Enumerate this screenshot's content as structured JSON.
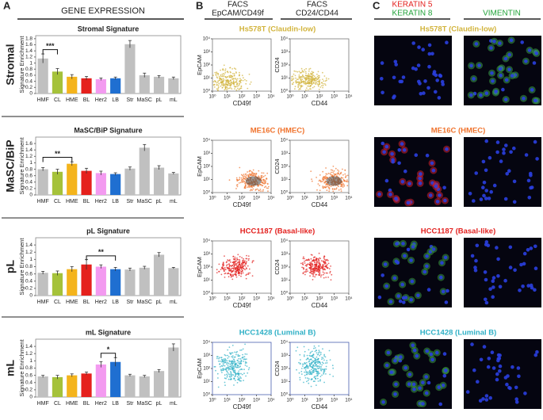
{
  "figure": {
    "panels": [
      "A",
      "B",
      "C"
    ],
    "gene_expression": "GENE EXPRESSION",
    "row_labels": [
      "Stromal",
      "MaSC/BiP",
      "pL",
      "mL"
    ],
    "y_label": "Signature Enrichment",
    "facs_columns": [
      {
        "title": "FACS",
        "subtitle": "EpCAM/CD49f"
      },
      {
        "title": "FACS",
        "subtitle": "CD24/CD44"
      }
    ],
    "facs_x_labels": [
      "CD49f",
      "CD44"
    ],
    "facs_y_labels": [
      "EpCAM",
      "CD24"
    ],
    "facs_ticks": [
      {
        "value": 1,
        "label": "10⁰"
      },
      {
        "value": 10,
        "label": "10¹"
      },
      {
        "value": 100,
        "label": "10²"
      },
      {
        "value": 1000,
        "label": "10³"
      },
      {
        "value": 10000,
        "label": "10⁴"
      }
    ],
    "cell_lines": [
      {
        "name": "Hs578T (Claudin-low)",
        "color": "#d2b43c"
      },
      {
        "name": "ME16C (HMEC)",
        "color": "#f0732d"
      },
      {
        "name": "HCC1187 (Basal-like)",
        "color": "#e3201e"
      },
      {
        "name": "HCC1428 (Luminal B)",
        "color": "#2fb0c6"
      }
    ],
    "stains": [
      {
        "label": "KERATIN 5",
        "color": "#e3201e"
      },
      {
        "label": "KERATIN 8",
        "color": "#22a33a"
      },
      {
        "label": "VIMENTIN",
        "color": "#22a33a"
      }
    ]
  },
  "chart_data": [
    {
      "type": "bar",
      "title": "Stromal Signature",
      "categories": [
        "HMF",
        "CL",
        "HME",
        "BL",
        "Her2",
        "LB",
        "Str",
        "MaSC",
        "pL",
        "mL"
      ],
      "values": [
        1.15,
        0.72,
        0.55,
        0.5,
        0.47,
        0.5,
        1.62,
        0.6,
        0.55,
        0.5
      ],
      "errors": [
        0.15,
        0.1,
        0.07,
        0.06,
        0.04,
        0.04,
        0.12,
        0.07,
        0.04,
        0.04
      ],
      "colors": [
        "#c0c0c0",
        "#a5c23a",
        "#f4b41c",
        "#e5201c",
        "#f39af0",
        "#1f6fd1",
        "#c0c0c0",
        "#c0c0c0",
        "#c0c0c0",
        "#c0c0c0"
      ],
      "ylim": [
        0,
        1.9
      ],
      "yticks": [
        0,
        0.2,
        0.4,
        0.6,
        0.8,
        1,
        1.2,
        1.4,
        1.6,
        1.8
      ],
      "annotation": "***"
    },
    {
      "type": "bar",
      "title": "MaSC/BiP Signature",
      "categories": [
        "HMF",
        "CL",
        "HME",
        "BL",
        "Her2",
        "LB",
        "Str",
        "MaSC",
        "pL",
        "mL"
      ],
      "values": [
        0.8,
        0.72,
        0.97,
        0.75,
        0.68,
        0.65,
        0.82,
        1.47,
        0.85,
        0.67
      ],
      "errors": [
        0.05,
        0.08,
        0.06,
        0.08,
        0.06,
        0.04,
        0.05,
        0.1,
        0.06,
        0.03
      ],
      "colors": [
        "#c0c0c0",
        "#a5c23a",
        "#f4b41c",
        "#e5201c",
        "#f39af0",
        "#1f6fd1",
        "#c0c0c0",
        "#c0c0c0",
        "#c0c0c0",
        "#c0c0c0"
      ],
      "ylim": [
        0,
        1.8
      ],
      "yticks": [
        0,
        0.2,
        0.4,
        0.6,
        0.8,
        1,
        1.2,
        1.4,
        1.6
      ],
      "annotation": "**"
    },
    {
      "type": "bar",
      "title": "pL Signature",
      "categories": [
        "HMF",
        "CL",
        "HME",
        "BL",
        "Her2",
        "LB",
        "Str",
        "MaSC",
        "pL",
        "mL"
      ],
      "values": [
        0.63,
        0.62,
        0.73,
        0.86,
        0.8,
        0.73,
        0.72,
        0.77,
        1.13,
        0.76
      ],
      "errors": [
        0.04,
        0.06,
        0.07,
        0.14,
        0.05,
        0.05,
        0.04,
        0.04,
        0.06,
        0.02
      ],
      "colors": [
        "#c0c0c0",
        "#a5c23a",
        "#f4b41c",
        "#e5201c",
        "#f39af0",
        "#1f6fd1",
        "#c0c0c0",
        "#c0c0c0",
        "#c0c0c0",
        "#c0c0c0"
      ],
      "ylim": [
        0,
        1.6
      ],
      "yticks": [
        0,
        0.2,
        0.4,
        0.6,
        0.8,
        1,
        1.2,
        1.4
      ],
      "annotation": "**"
    },
    {
      "type": "bar",
      "title": "mL Signature",
      "categories": [
        "HMF",
        "CL",
        "HME",
        "BL",
        "Her2",
        "LB",
        "Str",
        "MaSC",
        "pL",
        "mL"
      ],
      "values": [
        0.57,
        0.55,
        0.6,
        0.65,
        0.9,
        0.97,
        0.6,
        0.57,
        0.72,
        1.37
      ],
      "errors": [
        0.03,
        0.05,
        0.04,
        0.04,
        0.08,
        0.12,
        0.03,
        0.03,
        0.04,
        0.1
      ],
      "colors": [
        "#c0c0c0",
        "#a5c23a",
        "#f4b41c",
        "#e5201c",
        "#f39af0",
        "#1f6fd1",
        "#c0c0c0",
        "#c0c0c0",
        "#c0c0c0",
        "#c0c0c0"
      ],
      "ylim": [
        0,
        1.6
      ],
      "yticks": [
        0,
        0.2,
        0.4,
        0.6,
        0.8,
        1,
        1.2,
        1.4
      ],
      "annotation": "*"
    }
  ]
}
